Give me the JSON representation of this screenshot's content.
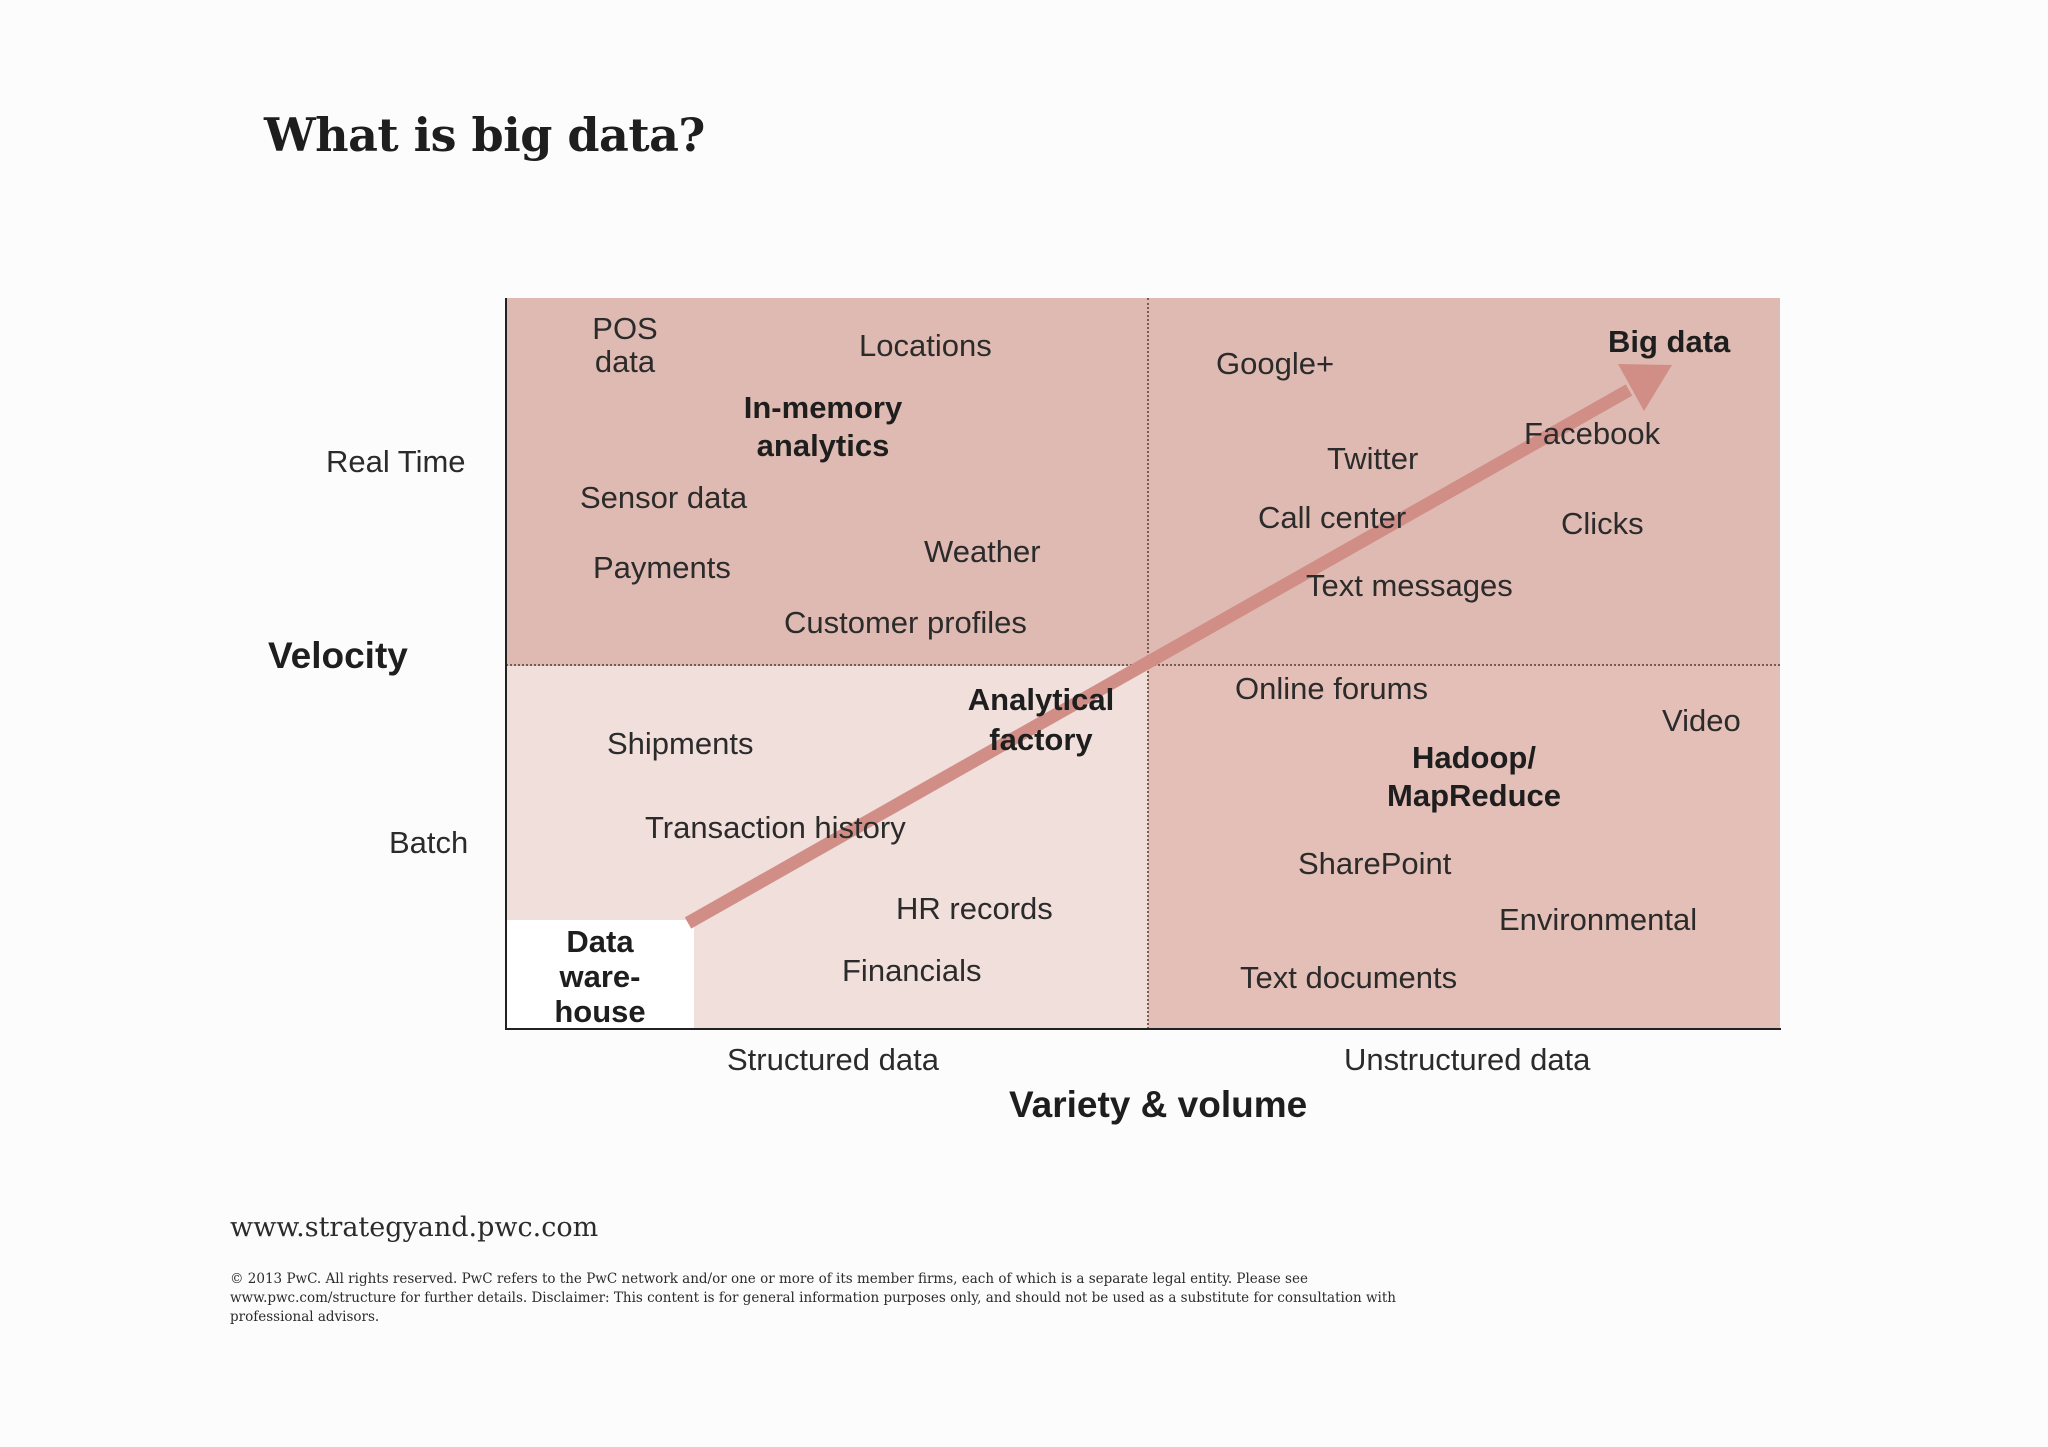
{
  "title": "What is big data?",
  "diagram": {
    "y_axis": {
      "title": "Velocity",
      "labels": [
        "Real Time",
        "Batch"
      ]
    },
    "x_axis": {
      "title": "Variety & volume",
      "labels": [
        "Structured data",
        "Unstructured data"
      ]
    },
    "quadrants": {
      "top_left": {
        "heading": [
          "In-memory",
          "analytics"
        ],
        "items": [
          "POS",
          "data",
          "Locations",
          "Sensor data",
          "Payments",
          "Weather",
          "Customer profiles"
        ]
      },
      "top_right": {
        "heading": "Big data",
        "items": [
          "Google+",
          "Facebook",
          "Twitter",
          "Call center",
          "Clicks",
          "Text messages"
        ]
      },
      "bottom_left": {
        "heading": [
          "Analytical",
          "factory"
        ],
        "items": [
          "Shipments",
          "Transaction history",
          "HR records",
          "Financials"
        ]
      },
      "bottom_right": {
        "heading": [
          "Hadoop/",
          "MapReduce"
        ],
        "items": [
          "Online forums",
          "Video",
          "SharePoint",
          "Environmental",
          "Text documents"
        ]
      },
      "corner": {
        "heading": [
          "Data",
          "ware-",
          "house"
        ]
      }
    },
    "colors": {
      "quadrant_dark": "#dfbab2",
      "quadrant_light": "#f1dfdb",
      "arrow": "#d08e86"
    }
  },
  "footer": {
    "website": "www.strategyand.pwc.com",
    "copyright": "© 2013 PwC. All rights reserved. PwC refers to the PwC network and/or one or more of its member firms, each of which is a separate legal entity. Please see www.pwc.com/structure for further details. Disclaimer: This content is for general information purposes only, and should not be used as a substitute for consultation with professional advisors."
  }
}
